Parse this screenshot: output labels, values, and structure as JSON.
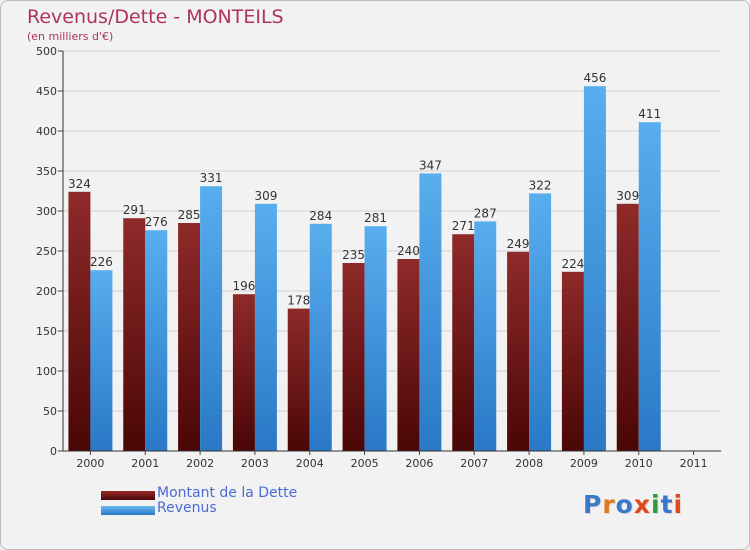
{
  "colors": {
    "dette": "#7a1818",
    "revenus": "#4aa2e6",
    "title": "#b0335a",
    "legend_text": "#4a6ad8"
  },
  "logo": {
    "text": "Proxiti",
    "letter_colors": [
      "#3a78c8",
      "#e07a1a",
      "#3a78c8",
      "#e04a1a",
      "#2e9a3a",
      "#3a78c8",
      "#e04a1a"
    ]
  },
  "chart_data": {
    "type": "bar",
    "title": "Revenus/Dette - MONTEILS",
    "subtitle": "(en milliers d'€)",
    "categories": [
      "2000",
      "2001",
      "2002",
      "2003",
      "2004",
      "2005",
      "2006",
      "2007",
      "2008",
      "2009",
      "2010",
      "2011"
    ],
    "series": [
      {
        "name": "Montant de la Dette",
        "values": [
          324,
          291,
          285,
          196,
          178,
          235,
          240,
          271,
          249,
          224,
          309,
          null
        ]
      },
      {
        "name": "Revenus",
        "values": [
          226,
          276,
          331,
          309,
          284,
          281,
          347,
          287,
          322,
          456,
          411,
          null
        ]
      }
    ],
    "ylim": [
      0,
      500
    ],
    "yticks": [
      "0",
      "50",
      "100",
      "150",
      "200",
      "250",
      "300",
      "350",
      "400",
      "450",
      "500"
    ],
    "grid": true,
    "legend_position": "bottom-left"
  }
}
